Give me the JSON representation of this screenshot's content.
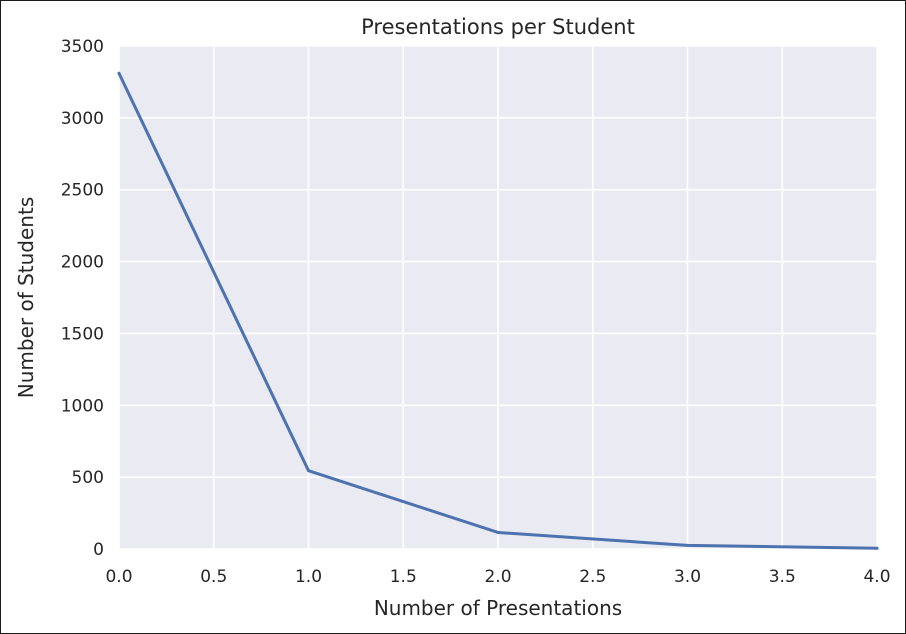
{
  "chart_data": {
    "type": "line",
    "title": "Presentations per Student",
    "xlabel": "Number of Presentations",
    "ylabel": "Number of Students",
    "xlim": [
      0,
      4
    ],
    "ylim": [
      0,
      3500
    ],
    "xticks": [
      "0.0",
      "0.5",
      "1.0",
      "1.5",
      "2.0",
      "2.5",
      "3.0",
      "3.5",
      "4.0"
    ],
    "yticks": [
      "0",
      "500",
      "1000",
      "1500",
      "2000",
      "2500",
      "3000",
      "3500"
    ],
    "grid": true,
    "legend": "none",
    "series": [
      {
        "x": [
          0,
          1,
          2,
          3,
          4
        ],
        "values": [
          3310,
          545,
          115,
          25,
          5
        ],
        "color": "#4c72b0"
      }
    ],
    "colors": {
      "plot_background": "#eaeaf2",
      "grid": "#ffffff",
      "line": "#4c72b0"
    }
  }
}
